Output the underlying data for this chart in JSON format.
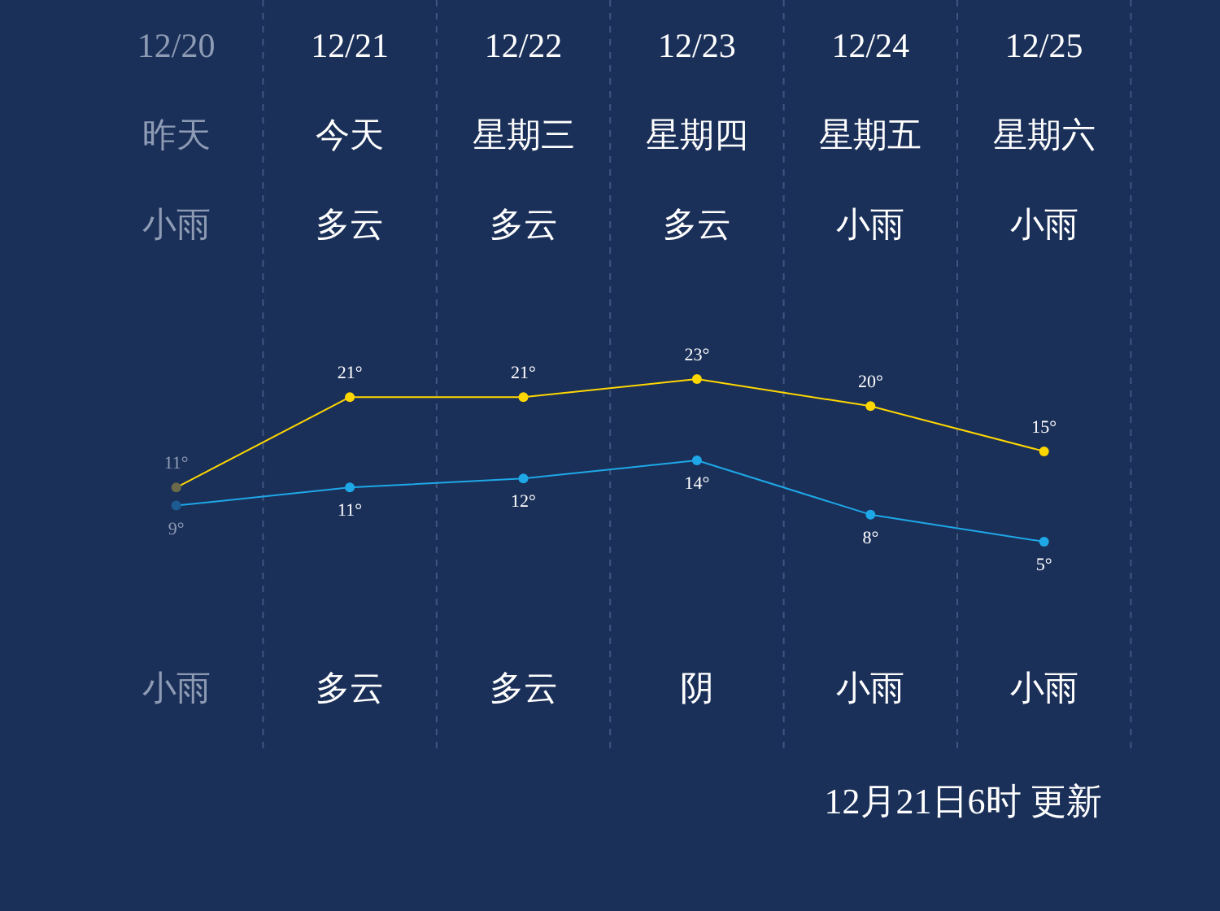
{
  "chart_data": {
    "type": "line",
    "categories": [
      "12/20",
      "12/21",
      "12/22",
      "12/23",
      "12/24",
      "12/25"
    ],
    "series": [
      {
        "color": "#ffd700",
        "colors": [
          "#6b6a48",
          "#ffd700",
          "#ffd700",
          "#ffd700",
          "#ffd700",
          "#ffd700"
        ],
        "values": [
          11,
          21,
          21,
          23,
          20,
          15
        ],
        "value_labels": [
          "11°",
          "21°",
          "21°",
          "23°",
          "20°",
          "15°"
        ]
      },
      {
        "color": "#1ea8e8",
        "colors": [
          "#1d5c92",
          "#1ea8e8",
          "#1ea8e8",
          "#1ea8e8",
          "#1ea8e8",
          "#1ea8e8"
        ],
        "values": [
          9,
          11,
          12,
          14,
          8,
          5
        ],
        "value_labels": [
          "9°",
          "11°",
          "12°",
          "14°",
          "8°",
          "5°"
        ]
      }
    ],
    "annotations": [
      "昨天",
      "今天",
      "星期三",
      "星期四",
      "星期五",
      "星期六",
      "小雨",
      "多云",
      "多云",
      "多云",
      "小雨",
      "小雨",
      "小雨",
      "多云",
      "多云",
      "阴",
      "小雨",
      "小雨",
      "12月21日6时 更新"
    ],
    "grid": "x",
    "marker": "circle"
  }
}
